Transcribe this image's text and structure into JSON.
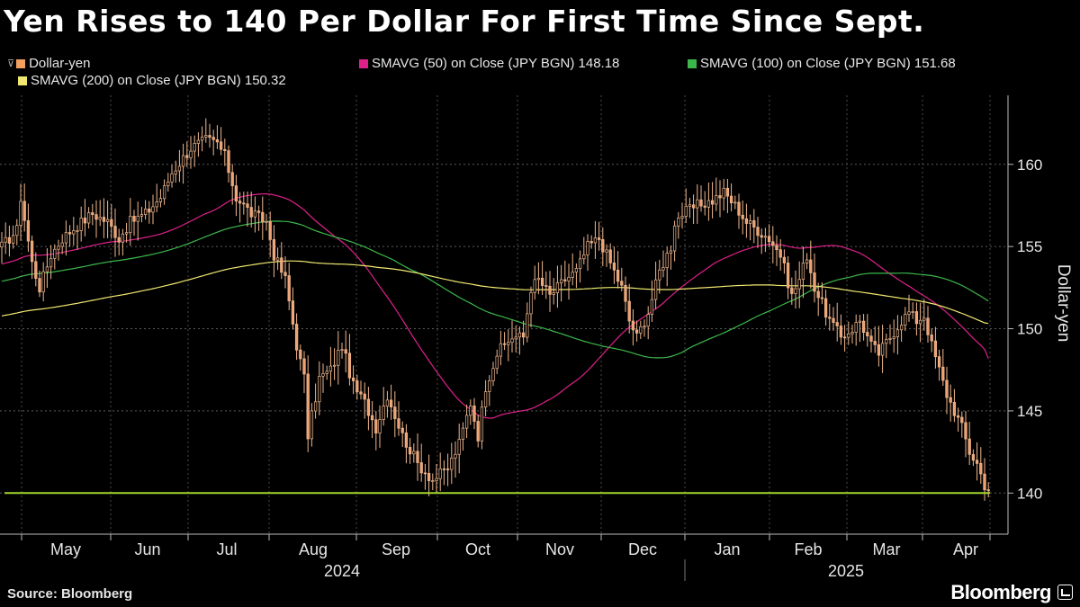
{
  "chart_data": {
    "type": "candlestick",
    "title": "Yen Rises to 140 Per Dollar For First Time Since Sept.",
    "ylabel": "Dollar-yen",
    "ylim": [
      137.5,
      164.2
    ],
    "yticks": [
      140,
      145,
      150,
      155,
      160
    ],
    "month_labels": [
      "May",
      "Jun",
      "Jul",
      "Aug",
      "Sep",
      "Oct",
      "Nov",
      "Dec",
      "Jan",
      "Feb",
      "Mar",
      "Apr"
    ],
    "year_labels": [
      "2024",
      "2025"
    ],
    "grid": true,
    "legend_position": "top-left",
    "legend": [
      {
        "label": "Dollar-yen",
        "color": "#f0a060",
        "caret": "⊽"
      },
      {
        "label": "SMAVG (50)  on Close (JPY BGN) 148.18",
        "color": "#e0208a"
      },
      {
        "label": "SMAVG (100)  on Close (JPY BGN) 151.68",
        "color": "#3cb84a"
      },
      {
        "label": "SMAVG (200)  on Close (JPY BGN) 150.32",
        "color": "#f0e870"
      }
    ],
    "reference_line": {
      "value": 140.0,
      "color": "#a4d62c"
    },
    "close_knots": [
      [
        0,
        155.0
      ],
      [
        4,
        156.0
      ],
      [
        5,
        158.0
      ],
      [
        8,
        154.0
      ],
      [
        10,
        152.5
      ],
      [
        13,
        154.5
      ],
      [
        16,
        155.5
      ],
      [
        20,
        156.3
      ],
      [
        24,
        157.0
      ],
      [
        28,
        156.5
      ],
      [
        31,
        155.5
      ],
      [
        34,
        156.5
      ],
      [
        38,
        157.0
      ],
      [
        42,
        158.0
      ],
      [
        45,
        159.5
      ],
      [
        50,
        161.0
      ],
      [
        54,
        161.5
      ],
      [
        57,
        161.3
      ],
      [
        59,
        160.5
      ],
      [
        62,
        158.0
      ],
      [
        66,
        157.0
      ],
      [
        70,
        156.5
      ],
      [
        72,
        154.5
      ],
      [
        75,
        153.0
      ],
      [
        78,
        149.0
      ],
      [
        80,
        147.0
      ],
      [
        81,
        143.5
      ],
      [
        84,
        147.0
      ],
      [
        87,
        147.5
      ],
      [
        90,
        149.0
      ],
      [
        93,
        146.5
      ],
      [
        96,
        145.5
      ],
      [
        99,
        144.0
      ],
      [
        102,
        146.0
      ],
      [
        106,
        143.5
      ],
      [
        110,
        141.8
      ],
      [
        114,
        140.8
      ],
      [
        118,
        141.5
      ],
      [
        121,
        143.0
      ],
      [
        124,
        145.5
      ],
      [
        126,
        143.5
      ],
      [
        128,
        146.5
      ],
      [
        131,
        148.5
      ],
      [
        135,
        149.5
      ],
      [
        138,
        149.5
      ],
      [
        140,
        152.5
      ],
      [
        142,
        153.0
      ],
      [
        145,
        152.0
      ],
      [
        149,
        153.0
      ],
      [
        152,
        153.5
      ],
      [
        155,
        155.0
      ],
      [
        158,
        155.5
      ],
      [
        161,
        154.0
      ],
      [
        164,
        152.5
      ],
      [
        166,
        150.5
      ],
      [
        168,
        149.5
      ],
      [
        171,
        151.0
      ],
      [
        174,
        153.5
      ],
      [
        177,
        155.0
      ],
      [
        178,
        156.5
      ],
      [
        180,
        157.0
      ],
      [
        184,
        157.5
      ],
      [
        188,
        157.8
      ],
      [
        191,
        158.3
      ],
      [
        194,
        157.5
      ],
      [
        197,
        156.5
      ],
      [
        200,
        156.0
      ],
      [
        203,
        155.5
      ],
      [
        206,
        154.5
      ],
      [
        209,
        152.0
      ],
      [
        211,
        153.0
      ],
      [
        213,
        154.5
      ],
      [
        215,
        152.5
      ],
      [
        217,
        151.5
      ],
      [
        219,
        150.5
      ],
      [
        222,
        149.5
      ],
      [
        225,
        150.0
      ],
      [
        227,
        150.5
      ],
      [
        230,
        149.0
      ],
      [
        232,
        148.5
      ],
      [
        235,
        149.5
      ],
      [
        238,
        150.5
      ],
      [
        240,
        151.0
      ],
      [
        242,
        150.5
      ],
      [
        244,
        150.8
      ],
      [
        246,
        149.0
      ],
      [
        248,
        147.5
      ],
      [
        250,
        146.0
      ],
      [
        252,
        145.0
      ],
      [
        254,
        144.0
      ],
      [
        256,
        142.5
      ],
      [
        258,
        141.8
      ],
      [
        260,
        140.5
      ],
      [
        261,
        140.2
      ]
    ],
    "series": [
      {
        "name": "SMAVG (50)  on Close (JPY BGN)",
        "window": 50,
        "last": 148.18
      },
      {
        "name": "SMAVG (100)  on Close (JPY BGN)",
        "window": 100,
        "last": 151.68
      },
      {
        "name": "SMAVG (200)  on Close (JPY BGN)",
        "window": 200,
        "last": 150.32
      }
    ]
  },
  "footer": {
    "source": "Source: Bloomberg",
    "brand": "Bloomberg"
  }
}
